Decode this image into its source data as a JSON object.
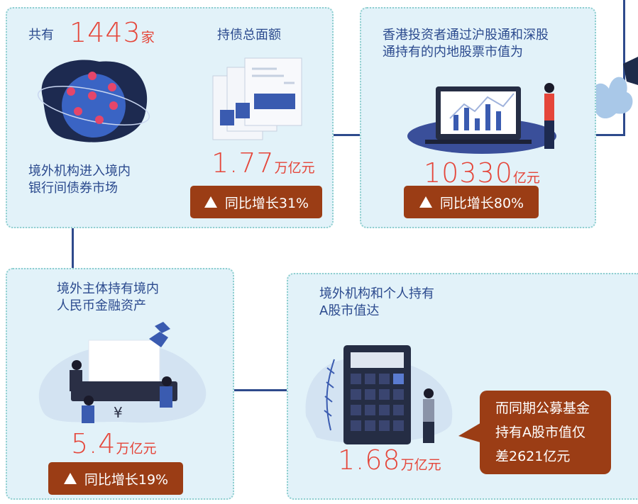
{
  "panel_1": {
    "count_prefix": "共有",
    "count": "1443",
    "count_unit": "家",
    "caption": [
      "境外机构进入境内",
      "银行间债券市场"
    ],
    "holding_title": "持债总面额",
    "holding": "1.77",
    "holding_unit": "万亿元",
    "growth": "同比增长31%"
  },
  "panel_2": {
    "caption": [
      "香港投资者通过沪股通和深股",
      "通持有的内地股票市值为"
    ],
    "value": "10330",
    "unit": "亿元",
    "growth": "同比增长80%"
  },
  "panel_3": {
    "caption": [
      "境外主体持有境内",
      "人民币金融资产"
    ],
    "yen_symbol": "¥",
    "value": "5.4",
    "unit": "万亿元",
    "growth": "同比增长19%"
  },
  "panel_4": {
    "caption": [
      "境外机构和个人持有",
      "A股市值达"
    ],
    "value": "1.68",
    "unit": "万亿元",
    "callout": [
      "而同期公募基金",
      "持有A股市值仅",
      "差2621亿元"
    ]
  }
}
